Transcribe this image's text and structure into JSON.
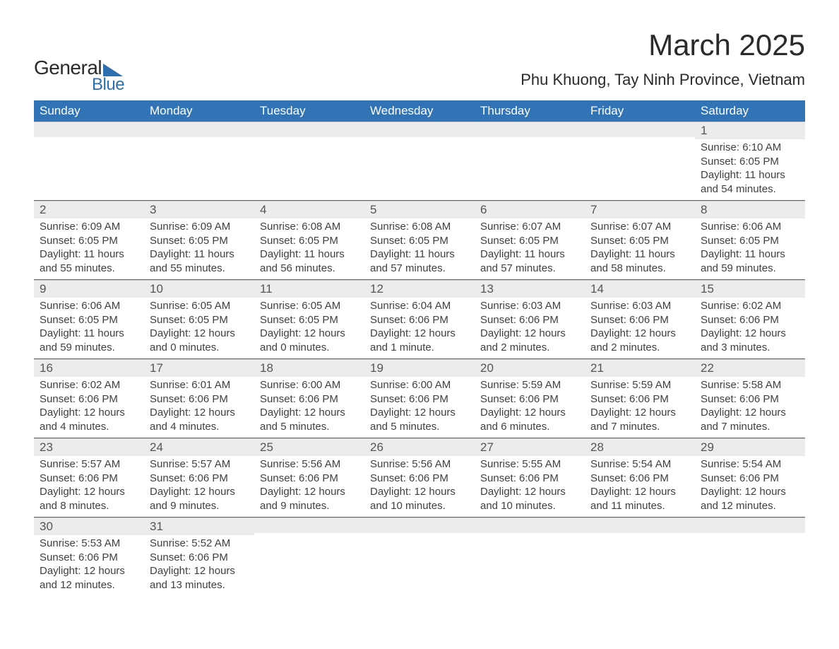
{
  "logo": {
    "word1": "General",
    "word2": "Blue",
    "triangle_color": "#2e6fb0",
    "text_color": "#2a2a2a",
    "blue_color": "#2e6fb0",
    "word1_fontsize": 28,
    "word2_fontsize": 24
  },
  "title": {
    "month": "March 2025",
    "location": "Phu Khuong, Tay Ninh Province, Vietnam",
    "month_fontsize": 42,
    "location_fontsize": 22,
    "color": "#2a2a2a"
  },
  "calendar": {
    "type": "table",
    "columns": 7,
    "header_bg": "#3273b5",
    "header_fg": "#ffffff",
    "header_fontsize": 17,
    "daynum_bg": "#ececec",
    "daynum_fg": "#555555",
    "daynum_fontsize": 17,
    "body_fontsize": 15,
    "body_color": "#404040",
    "row_border_color": "#3273b5",
    "weekdays": [
      "Sunday",
      "Monday",
      "Tuesday",
      "Wednesday",
      "Thursday",
      "Friday",
      "Saturday"
    ],
    "leading_blanks": 6,
    "days": [
      {
        "n": "1",
        "sunrise": "Sunrise: 6:10 AM",
        "sunset": "Sunset: 6:05 PM",
        "d1": "Daylight: 11 hours",
        "d2": "and 54 minutes."
      },
      {
        "n": "2",
        "sunrise": "Sunrise: 6:09 AM",
        "sunset": "Sunset: 6:05 PM",
        "d1": "Daylight: 11 hours",
        "d2": "and 55 minutes."
      },
      {
        "n": "3",
        "sunrise": "Sunrise: 6:09 AM",
        "sunset": "Sunset: 6:05 PM",
        "d1": "Daylight: 11 hours",
        "d2": "and 55 minutes."
      },
      {
        "n": "4",
        "sunrise": "Sunrise: 6:08 AM",
        "sunset": "Sunset: 6:05 PM",
        "d1": "Daylight: 11 hours",
        "d2": "and 56 minutes."
      },
      {
        "n": "5",
        "sunrise": "Sunrise: 6:08 AM",
        "sunset": "Sunset: 6:05 PM",
        "d1": "Daylight: 11 hours",
        "d2": "and 57 minutes."
      },
      {
        "n": "6",
        "sunrise": "Sunrise: 6:07 AM",
        "sunset": "Sunset: 6:05 PM",
        "d1": "Daylight: 11 hours",
        "d2": "and 57 minutes."
      },
      {
        "n": "7",
        "sunrise": "Sunrise: 6:07 AM",
        "sunset": "Sunset: 6:05 PM",
        "d1": "Daylight: 11 hours",
        "d2": "and 58 minutes."
      },
      {
        "n": "8",
        "sunrise": "Sunrise: 6:06 AM",
        "sunset": "Sunset: 6:05 PM",
        "d1": "Daylight: 11 hours",
        "d2": "and 59 minutes."
      },
      {
        "n": "9",
        "sunrise": "Sunrise: 6:06 AM",
        "sunset": "Sunset: 6:05 PM",
        "d1": "Daylight: 11 hours",
        "d2": "and 59 minutes."
      },
      {
        "n": "10",
        "sunrise": "Sunrise: 6:05 AM",
        "sunset": "Sunset: 6:05 PM",
        "d1": "Daylight: 12 hours",
        "d2": "and 0 minutes."
      },
      {
        "n": "11",
        "sunrise": "Sunrise: 6:05 AM",
        "sunset": "Sunset: 6:05 PM",
        "d1": "Daylight: 12 hours",
        "d2": "and 0 minutes."
      },
      {
        "n": "12",
        "sunrise": "Sunrise: 6:04 AM",
        "sunset": "Sunset: 6:06 PM",
        "d1": "Daylight: 12 hours",
        "d2": "and 1 minute."
      },
      {
        "n": "13",
        "sunrise": "Sunrise: 6:03 AM",
        "sunset": "Sunset: 6:06 PM",
        "d1": "Daylight: 12 hours",
        "d2": "and 2 minutes."
      },
      {
        "n": "14",
        "sunrise": "Sunrise: 6:03 AM",
        "sunset": "Sunset: 6:06 PM",
        "d1": "Daylight: 12 hours",
        "d2": "and 2 minutes."
      },
      {
        "n": "15",
        "sunrise": "Sunrise: 6:02 AM",
        "sunset": "Sunset: 6:06 PM",
        "d1": "Daylight: 12 hours",
        "d2": "and 3 minutes."
      },
      {
        "n": "16",
        "sunrise": "Sunrise: 6:02 AM",
        "sunset": "Sunset: 6:06 PM",
        "d1": "Daylight: 12 hours",
        "d2": "and 4 minutes."
      },
      {
        "n": "17",
        "sunrise": "Sunrise: 6:01 AM",
        "sunset": "Sunset: 6:06 PM",
        "d1": "Daylight: 12 hours",
        "d2": "and 4 minutes."
      },
      {
        "n": "18",
        "sunrise": "Sunrise: 6:00 AM",
        "sunset": "Sunset: 6:06 PM",
        "d1": "Daylight: 12 hours",
        "d2": "and 5 minutes."
      },
      {
        "n": "19",
        "sunrise": "Sunrise: 6:00 AM",
        "sunset": "Sunset: 6:06 PM",
        "d1": "Daylight: 12 hours",
        "d2": "and 5 minutes."
      },
      {
        "n": "20",
        "sunrise": "Sunrise: 5:59 AM",
        "sunset": "Sunset: 6:06 PM",
        "d1": "Daylight: 12 hours",
        "d2": "and 6 minutes."
      },
      {
        "n": "21",
        "sunrise": "Sunrise: 5:59 AM",
        "sunset": "Sunset: 6:06 PM",
        "d1": "Daylight: 12 hours",
        "d2": "and 7 minutes."
      },
      {
        "n": "22",
        "sunrise": "Sunrise: 5:58 AM",
        "sunset": "Sunset: 6:06 PM",
        "d1": "Daylight: 12 hours",
        "d2": "and 7 minutes."
      },
      {
        "n": "23",
        "sunrise": "Sunrise: 5:57 AM",
        "sunset": "Sunset: 6:06 PM",
        "d1": "Daylight: 12 hours",
        "d2": "and 8 minutes."
      },
      {
        "n": "24",
        "sunrise": "Sunrise: 5:57 AM",
        "sunset": "Sunset: 6:06 PM",
        "d1": "Daylight: 12 hours",
        "d2": "and 9 minutes."
      },
      {
        "n": "25",
        "sunrise": "Sunrise: 5:56 AM",
        "sunset": "Sunset: 6:06 PM",
        "d1": "Daylight: 12 hours",
        "d2": "and 9 minutes."
      },
      {
        "n": "26",
        "sunrise": "Sunrise: 5:56 AM",
        "sunset": "Sunset: 6:06 PM",
        "d1": "Daylight: 12 hours",
        "d2": "and 10 minutes."
      },
      {
        "n": "27",
        "sunrise": "Sunrise: 5:55 AM",
        "sunset": "Sunset: 6:06 PM",
        "d1": "Daylight: 12 hours",
        "d2": "and 10 minutes."
      },
      {
        "n": "28",
        "sunrise": "Sunrise: 5:54 AM",
        "sunset": "Sunset: 6:06 PM",
        "d1": "Daylight: 12 hours",
        "d2": "and 11 minutes."
      },
      {
        "n": "29",
        "sunrise": "Sunrise: 5:54 AM",
        "sunset": "Sunset: 6:06 PM",
        "d1": "Daylight: 12 hours",
        "d2": "and 12 minutes."
      },
      {
        "n": "30",
        "sunrise": "Sunrise: 5:53 AM",
        "sunset": "Sunset: 6:06 PM",
        "d1": "Daylight: 12 hours",
        "d2": "and 12 minutes."
      },
      {
        "n": "31",
        "sunrise": "Sunrise: 5:52 AM",
        "sunset": "Sunset: 6:06 PM",
        "d1": "Daylight: 12 hours",
        "d2": "and 13 minutes."
      }
    ]
  }
}
